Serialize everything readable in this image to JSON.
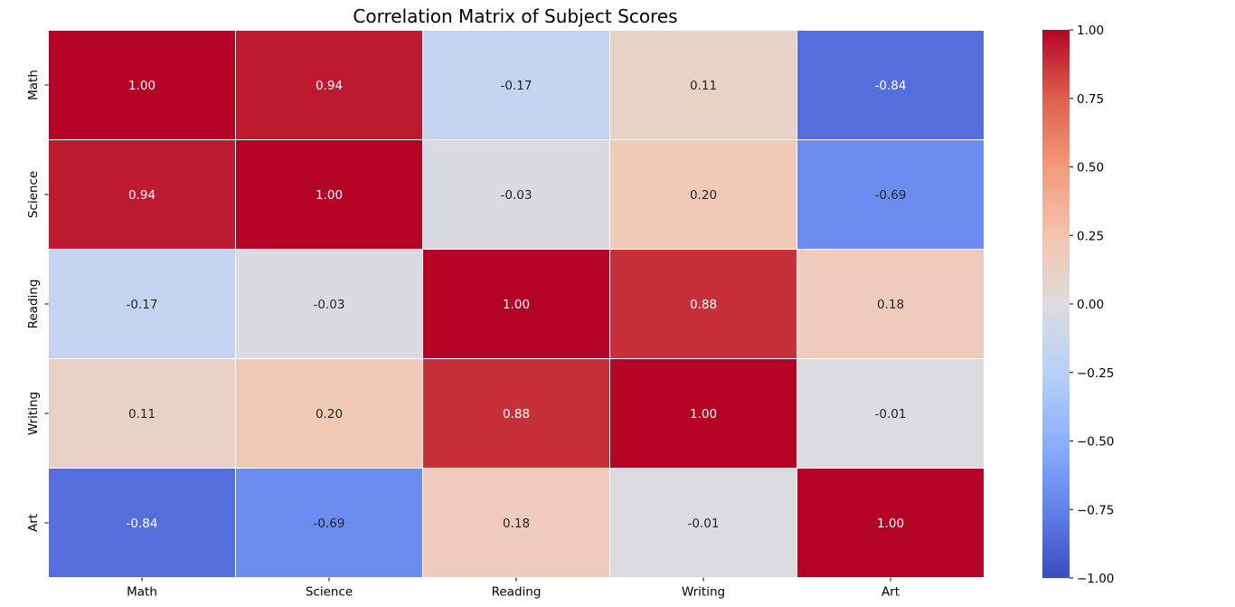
{
  "chart_data": {
    "type": "heatmap",
    "title": "Correlation Matrix of Subject Scores",
    "row_labels": [
      "Math",
      "Science",
      "Reading",
      "Writing",
      "Art"
    ],
    "col_labels": [
      "Math",
      "Science",
      "Reading",
      "Writing",
      "Art"
    ],
    "values": [
      [
        1.0,
        0.94,
        -0.17,
        0.11,
        -0.84
      ],
      [
        0.94,
        1.0,
        -0.03,
        0.2,
        -0.69
      ],
      [
        -0.17,
        -0.03,
        1.0,
        0.88,
        0.18
      ],
      [
        0.11,
        0.2,
        0.88,
        1.0,
        -0.01
      ],
      [
        -0.84,
        -0.69,
        0.18,
        -0.01,
        1.0
      ]
    ],
    "annotation_format": "0.00",
    "colormap": "coolwarm",
    "vmin": -1.0,
    "vmax": 1.0,
    "colorbar_ticks": [
      "1.00",
      "0.75",
      "0.50",
      "0.25",
      "0.00",
      "−0.25",
      "−0.50",
      "−0.75",
      "−1.00"
    ],
    "colorbar_tick_values": [
      1.0,
      0.75,
      0.5,
      0.25,
      0.0,
      -0.25,
      -0.5,
      -0.75,
      -1.0
    ],
    "cell_border_color": "#ffffff",
    "annotation_colors": {
      "dark_text": "#262626",
      "light_text": "#ffffff"
    }
  }
}
